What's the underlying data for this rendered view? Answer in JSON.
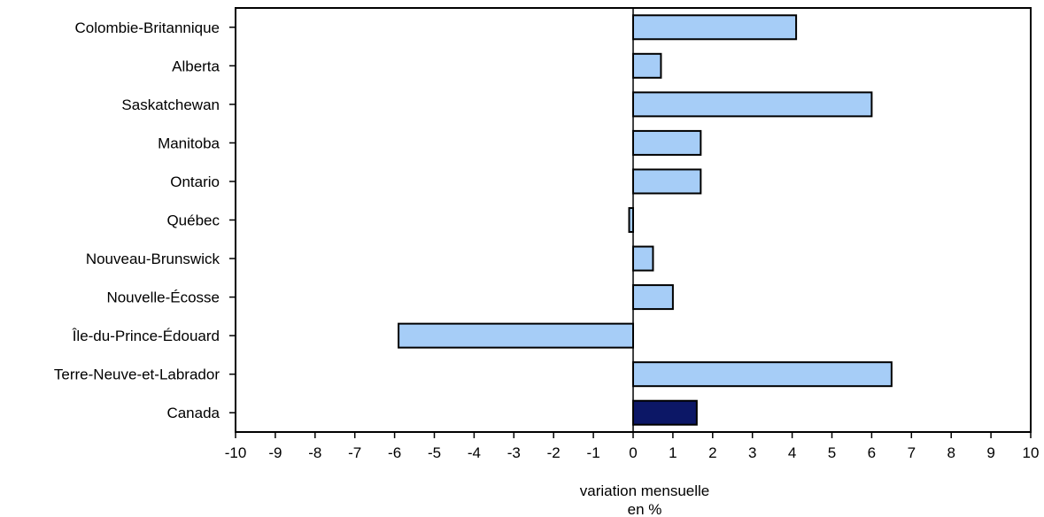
{
  "chart_data": {
    "type": "bar",
    "orientation": "horizontal",
    "categories": [
      "Colombie-Britannique",
      "Alberta",
      "Saskatchewan",
      "Manitoba",
      "Ontario",
      "Québec",
      "Nouveau-Brunswick",
      "Nouvelle-Écosse",
      "Île-du-Prince-Édouard",
      "Terre-Neuve-et-Labrador",
      "Canada"
    ],
    "values": [
      4.1,
      0.7,
      6.0,
      1.7,
      1.7,
      -0.1,
      0.5,
      1.0,
      -5.9,
      6.5,
      1.6
    ],
    "title": "",
    "xlabel_lines": [
      "variation mensuelle",
      "en %"
    ],
    "ylabel": "",
    "xlim": [
      -10,
      10
    ],
    "xticks": [
      -10,
      -9,
      -8,
      -7,
      -6,
      -5,
      -4,
      -3,
      -2,
      -1,
      0,
      1,
      2,
      3,
      4,
      5,
      6,
      7,
      8,
      9,
      10
    ],
    "grid": false,
    "legend": "none",
    "colors": {
      "province_bar": "#a6cdf7",
      "canada_bar": "#0c1766",
      "bar_outline": "#000000",
      "frame": "#000000"
    },
    "highlight_category": "Canada"
  }
}
